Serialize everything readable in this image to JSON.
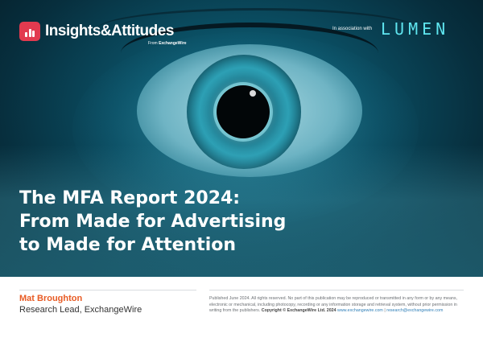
{
  "brand": {
    "name": "Insights&Attitudes",
    "from_label": "From",
    "from_brand": "ExchangeWire"
  },
  "header": {
    "association_label": "In association with",
    "partner": "LUMEN"
  },
  "cover": {
    "title_lines": [
      "The MFA Report 2024:",
      "From Made for Advertising",
      "to Made for Attention"
    ]
  },
  "author": {
    "name": "Mat Broughton",
    "role": "Research Lead, ExchangeWire"
  },
  "legal": {
    "text": "Published June 2024. All rights reserved. No part of this publication may be reproduced or transmitted in any form or by any means, electronic or mechanical, including photocopy, recording or any information storage and retrieval system, without prior permission in writing from the publishers.",
    "copyright": "Copyright © ExchangeWire Ltd. 2024",
    "link1": "www.exchangewire.com",
    "separator": "|",
    "link2": "research@exchangewire.com"
  },
  "colors": {
    "accent_red": "#e23a4f",
    "author_orange": "#e85b24",
    "partner_cyan": "#5fe6f0",
    "link_blue": "#2f7fb8"
  }
}
